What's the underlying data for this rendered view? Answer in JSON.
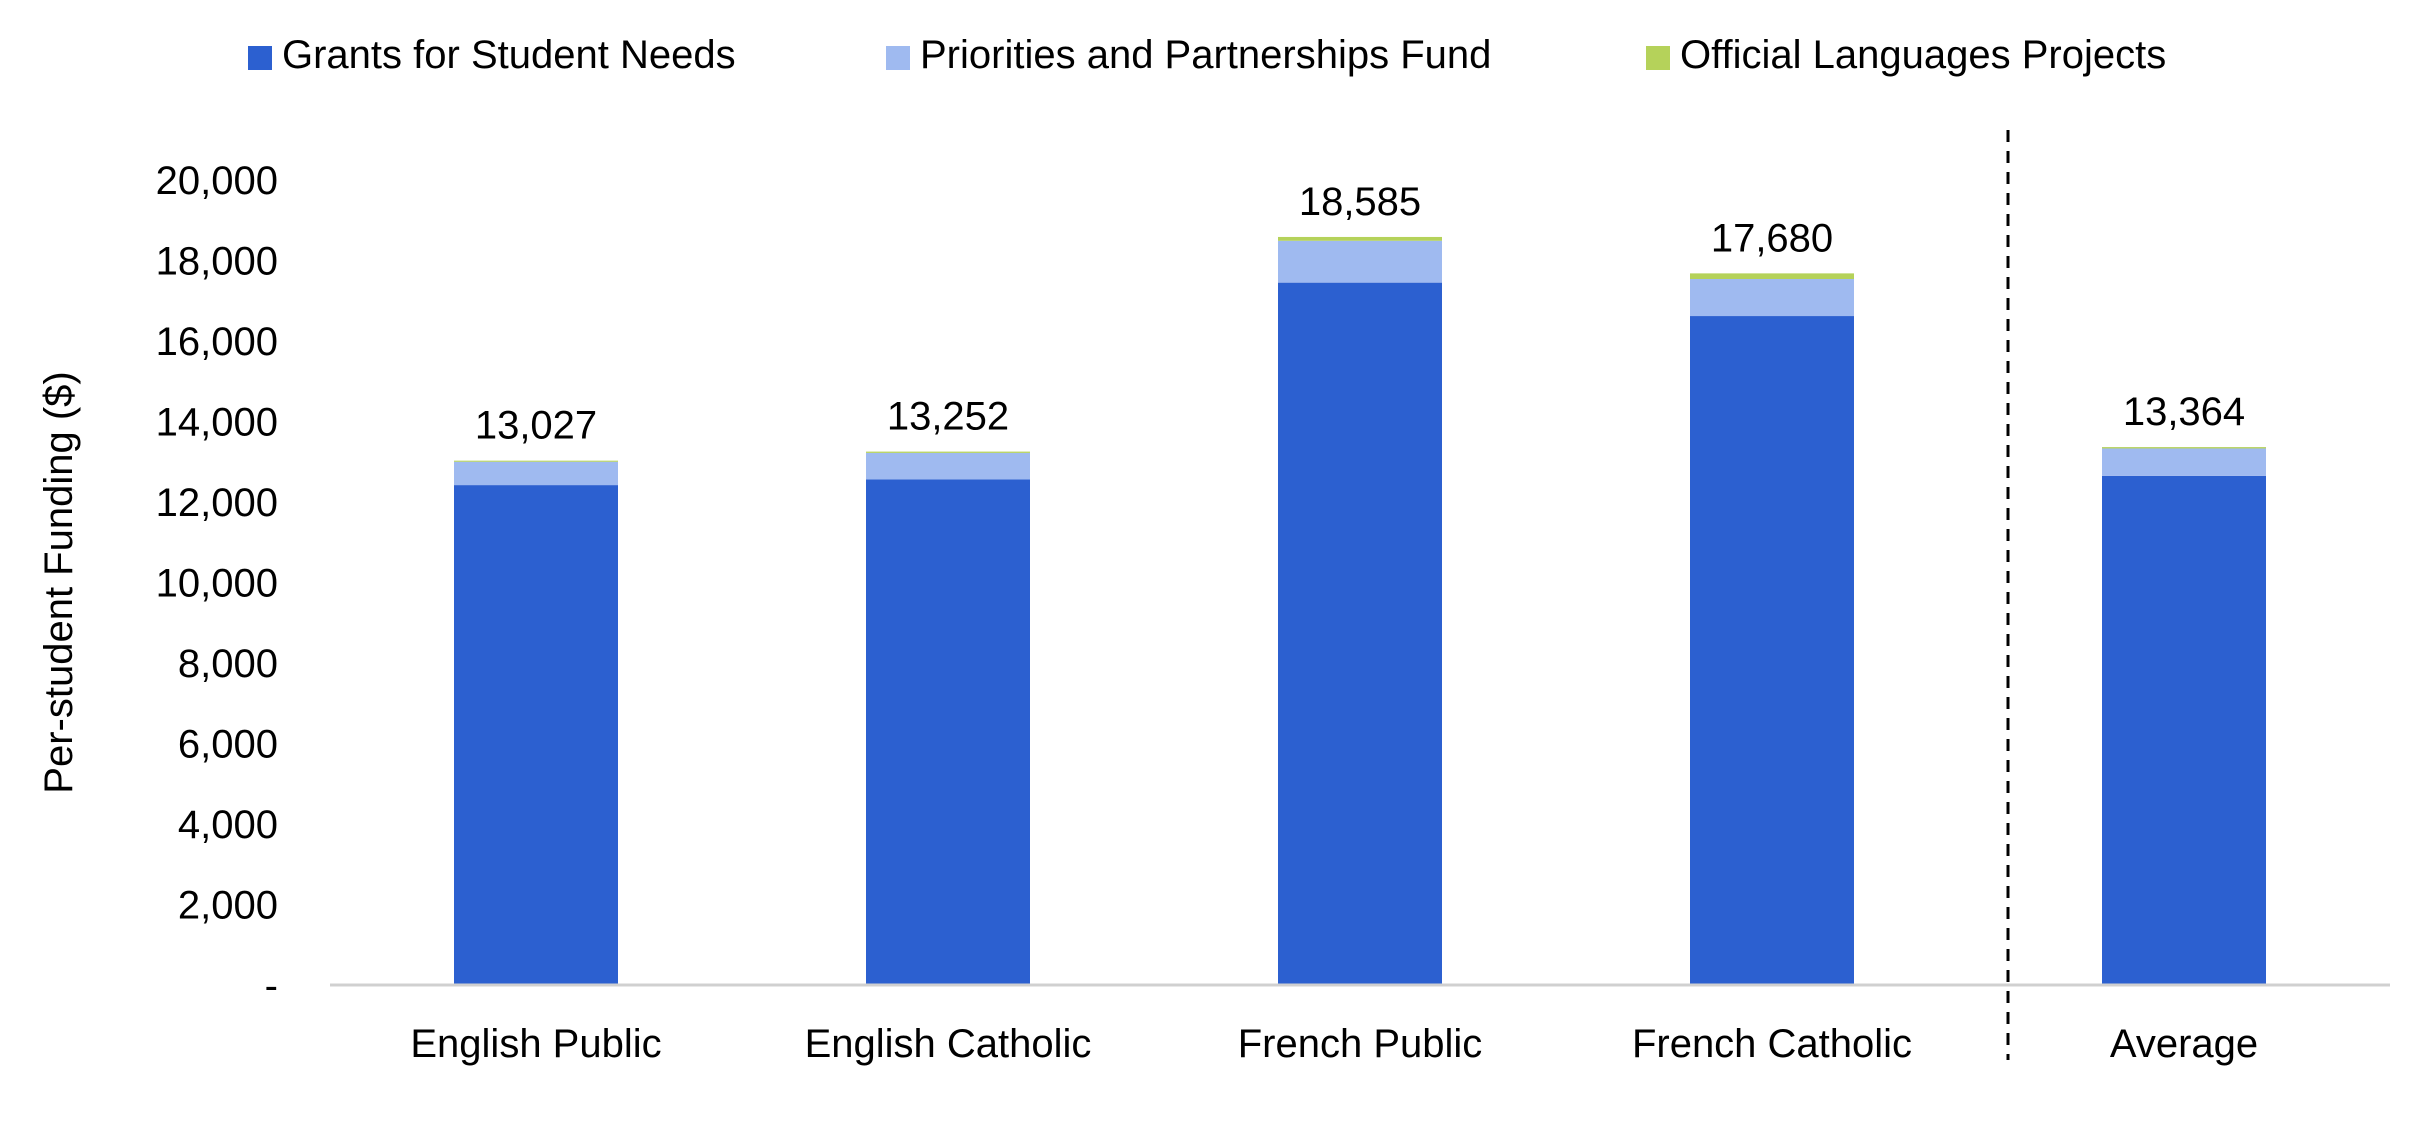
{
  "chart_data": {
    "type": "bar",
    "stacked": true,
    "title": "",
    "xlabel": "",
    "ylabel": "Per-student Funding ($)",
    "ylim": [
      0,
      20000
    ],
    "y_ticks": [
      0,
      2000,
      4000,
      6000,
      8000,
      10000,
      12000,
      14000,
      16000,
      18000,
      20000
    ],
    "y_tick_labels": [
      "-",
      "2,000",
      "4,000",
      "6,000",
      "8,000",
      "10,000",
      "12,000",
      "14,000",
      "16,000",
      "18,000",
      "20,000"
    ],
    "categories": [
      "English Public",
      "English Catholic",
      "French Public",
      "French Catholic",
      "Average"
    ],
    "series": [
      {
        "name": "Grants for Student Needs",
        "color": "#2c60d0",
        "values": [
          12420,
          12560,
          17450,
          16620,
          12650
        ]
      },
      {
        "name": "Priorities and Partnerships Fund",
        "color": "#9fbaf0",
        "values": [
          580,
          660,
          1040,
          920,
          680
        ]
      },
      {
        "name": "Official Languages Projects",
        "color": "#b5d25a",
        "values": [
          27,
          32,
          95,
          140,
          34
        ]
      }
    ],
    "totals": [
      13027,
      13252,
      18585,
      17680,
      13364
    ],
    "total_labels": [
      "13,027",
      "13,252",
      "18,585",
      "17,680",
      "13,364"
    ],
    "grid": false,
    "legend_position": "top",
    "separator": "dashed line between French Catholic and Average"
  }
}
